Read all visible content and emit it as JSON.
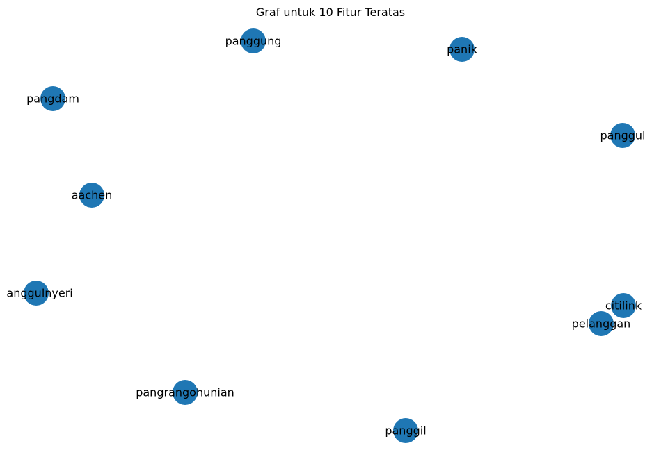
{
  "title": "Graf untuk 10 Fitur Teratas",
  "node_color": "#1f77b4",
  "label_color": "#000000",
  "background": "#ffffff",
  "nodes": [
    {
      "id": "panggung",
      "label": "panggung"
    },
    {
      "id": "panik",
      "label": "panik"
    },
    {
      "id": "pangdam",
      "label": "pangdam"
    },
    {
      "id": "panggul",
      "label": "panggul"
    },
    {
      "id": "aachen",
      "label": "aachen"
    },
    {
      "id": "panggulnyeri",
      "label": "panggulnyeri"
    },
    {
      "id": "citilink",
      "label": "citilink"
    },
    {
      "id": "pelanggan",
      "label": "pelanggan"
    },
    {
      "id": "pangrangohunian",
      "label": "pangrangohunian"
    },
    {
      "id": "panggil",
      "label": "panggil"
    }
  ],
  "edges": []
}
